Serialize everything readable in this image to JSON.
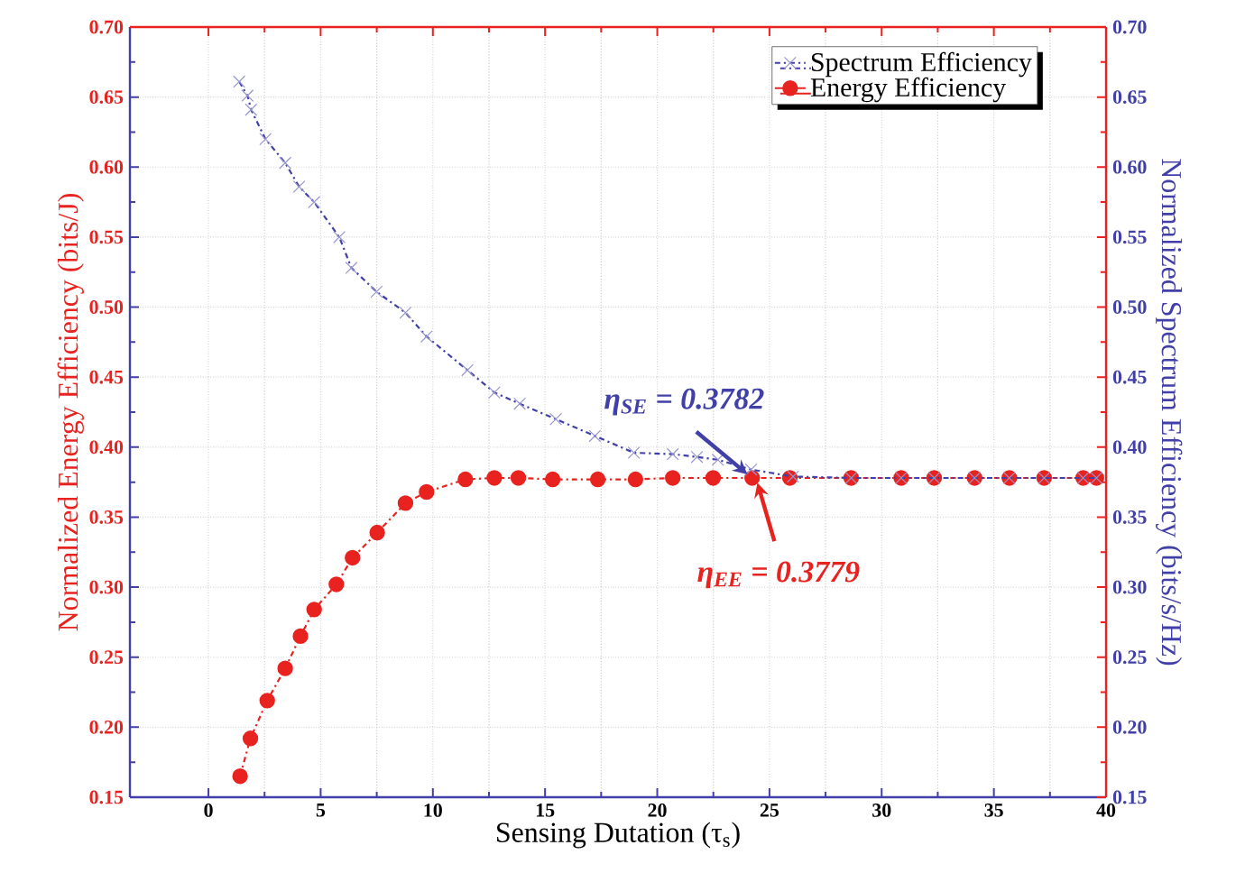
{
  "chart_data": {
    "type": "line",
    "xlabel": "Sensing Dutation (τ$_{s}$)",
    "ylabel": "Normalized Energy Efficiency (bits/J)",
    "y2label": "Normalized Spectrum Efficiency (bits/s/Hz)",
    "xlim": [
      -3.5,
      40
    ],
    "xticks": [
      0,
      5,
      10,
      15,
      20,
      25,
      30,
      35,
      40
    ],
    "ylim": [
      0.15,
      0.7
    ],
    "yticks": [
      {
        "value": 0.15,
        "label": "0.15"
      },
      {
        "value": 0.2,
        "label": "0.20"
      },
      {
        "value": 0.25,
        "label": "0.25"
      },
      {
        "value": 0.3,
        "label": "0.30"
      },
      {
        "value": 0.35,
        "label": "0.35"
      },
      {
        "value": 0.4,
        "label": "0.40"
      },
      {
        "value": 0.45,
        "label": "0.45"
      },
      {
        "value": 0.5,
        "label": "0.50"
      },
      {
        "value": 0.55,
        "label": "0.55"
      },
      {
        "value": 0.6,
        "label": "0.60"
      },
      {
        "value": 0.65,
        "label": "0.65"
      },
      {
        "value": 0.7,
        "label": "0.70"
      }
    ],
    "y2lim": [
      0.15,
      0.7
    ],
    "y2ticks": [
      {
        "value": 0.15,
        "label": "0.15"
      },
      {
        "value": 0.2,
        "label": "0.20"
      },
      {
        "value": 0.25,
        "label": "0.25"
      },
      {
        "value": 0.3,
        "label": "0.30"
      },
      {
        "value": 0.35,
        "label": "0.35"
      },
      {
        "value": 0.4,
        "label": "0.40"
      },
      {
        "value": 0.45,
        "label": "0.45"
      },
      {
        "value": 0.5,
        "label": "0.50"
      },
      {
        "value": 0.55,
        "label": "0.55"
      },
      {
        "value": 0.6,
        "label": "0.60"
      },
      {
        "value": 0.65,
        "label": "0.65"
      },
      {
        "value": 0.7,
        "label": "0.70"
      }
    ],
    "grid": true,
    "legend": "top right",
    "line_style": "dashed",
    "series": [
      {
        "name": "Spectrum Efficiency",
        "color": "#4040a8",
        "axis": "y2",
        "marker": "cross",
        "x": [
          1.37,
          1.74,
          1.9,
          2.54,
          3.42,
          4.04,
          4.71,
          5.83,
          6.37,
          7.49,
          8.78,
          9.72,
          11.54,
          12.74,
          13.87,
          15.48,
          17.22,
          18.96,
          20.69,
          21.77,
          22.7,
          24.18,
          26.05,
          28.64,
          30.87,
          32.34,
          34.14,
          35.69,
          37.24,
          38.98,
          39.57
        ],
        "values": [
          0.661,
          0.651,
          0.641,
          0.62,
          0.603,
          0.586,
          0.575,
          0.55,
          0.528,
          0.511,
          0.496,
          0.479,
          0.455,
          0.439,
          0.431,
          0.42,
          0.408,
          0.396,
          0.395,
          0.393,
          0.391,
          0.384,
          0.379,
          0.378,
          0.378,
          0.378,
          0.378,
          0.378,
          0.378,
          0.378,
          0.378
        ]
      },
      {
        "name": "Energy Efficiency",
        "color": "#e8231f",
        "axis": "y",
        "marker": "circle",
        "x": [
          1.41,
          1.87,
          2.62,
          3.42,
          4.1,
          4.71,
          5.7,
          6.42,
          7.52,
          8.78,
          9.72,
          11.45,
          12.74,
          13.81,
          15.34,
          17.35,
          19.03,
          20.69,
          22.49,
          24.23,
          25.91,
          28.64,
          30.87,
          32.34,
          34.14,
          35.69,
          37.24,
          38.98,
          39.57
        ],
        "values": [
          0.165,
          0.192,
          0.219,
          0.242,
          0.265,
          0.284,
          0.302,
          0.321,
          0.339,
          0.36,
          0.368,
          0.377,
          0.378,
          0.378,
          0.377,
          0.377,
          0.377,
          0.378,
          0.378,
          0.378,
          0.378,
          0.378,
          0.378,
          0.378,
          0.378,
          0.378,
          0.378,
          0.378,
          0.378
        ]
      }
    ],
    "annotations": [
      {
        "text": "η$_{SE}$ = 0.3782",
        "x": 24.2,
        "y": 0.3782
      },
      {
        "text": "η$_{EE}$ =  0.3779",
        "x": 24.4,
        "y": 0.3779
      }
    ]
  }
}
